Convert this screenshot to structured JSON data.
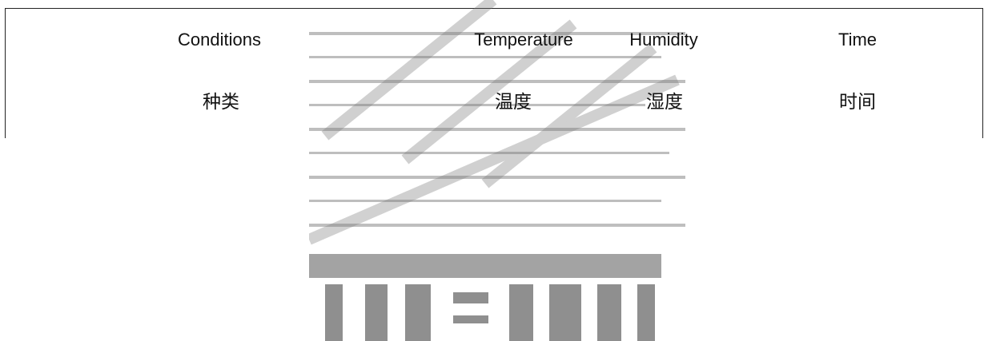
{
  "table": {
    "header_en": [
      "Conditions",
      "Temperature",
      "Humidity",
      "Time"
    ],
    "header_zh": [
      "种类",
      "温度",
      "湿度",
      "时间"
    ]
  }
}
